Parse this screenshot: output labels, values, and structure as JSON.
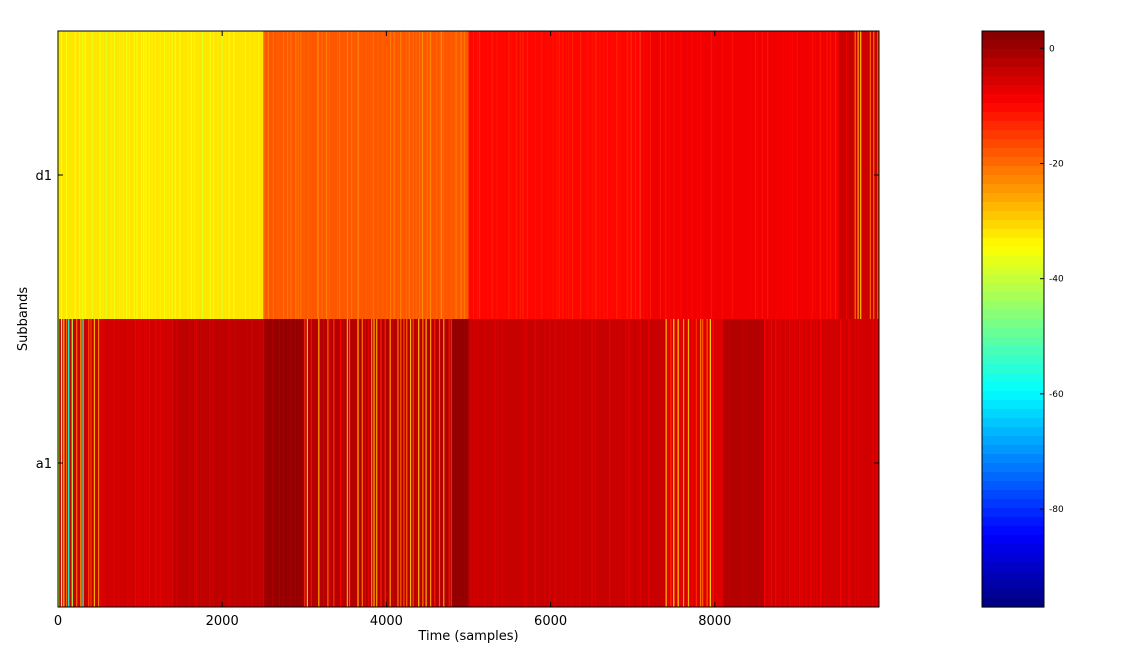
{
  "chart_data": {
    "type": "heatmap",
    "title": "",
    "xlabel": "Time (samples)",
    "ylabel": "Subbands",
    "xlim": [
      0,
      10000
    ],
    "x_ticks": [
      0,
      2000,
      4000,
      6000,
      8000
    ],
    "rows": [
      "d1",
      "a1"
    ],
    "clim": [
      -97,
      3
    ],
    "colorbar_ticks": [
      0,
      -20,
      -40,
      -60,
      -80
    ],
    "colormap": "jet",
    "grid": false,
    "colorbar_position": "right",
    "segments": [
      {
        "row": "d1",
        "blocks": [
          {
            "x_start": 0,
            "x_end": 2500,
            "base_db": -32,
            "stripe_db": -38
          },
          {
            "x_start": 2500,
            "x_end": 5000,
            "base_db": -18,
            "stripe_db": -24
          },
          {
            "x_start": 5000,
            "x_end": 7100,
            "base_db": -10,
            "stripe_db": -14
          },
          {
            "x_start": 7100,
            "x_end": 9500,
            "base_db": -8,
            "stripe_db": -12
          },
          {
            "x_start": 9500,
            "x_end": 10000,
            "base_db": -4,
            "stripe_db": -30
          }
        ]
      },
      {
        "row": "a1",
        "blocks": [
          {
            "x_start": 0,
            "x_end": 500,
            "base_db": -4,
            "stripe_db": -60
          },
          {
            "x_start": 500,
            "x_end": 1400,
            "base_db": -5,
            "stripe_db": -9
          },
          {
            "x_start": 1400,
            "x_end": 2500,
            "base_db": -3,
            "stripe_db": -6
          },
          {
            "x_start": 2500,
            "x_end": 3000,
            "base_db": 1,
            "stripe_db": -2
          },
          {
            "x_start": 3000,
            "x_end": 4800,
            "base_db": -2,
            "stripe_db": -30
          },
          {
            "x_start": 4800,
            "x_end": 5000,
            "base_db": 1,
            "stripe_db": -1
          },
          {
            "x_start": 5000,
            "x_end": 7400,
            "base_db": -4,
            "stripe_db": -8
          },
          {
            "x_start": 7400,
            "x_end": 8100,
            "base_db": -6,
            "stripe_db": -34
          },
          {
            "x_start": 8100,
            "x_end": 8600,
            "base_db": -2,
            "stripe_db": -4
          },
          {
            "x_start": 8600,
            "x_end": 10000,
            "base_db": -5,
            "stripe_db": -9
          }
        ]
      }
    ]
  }
}
